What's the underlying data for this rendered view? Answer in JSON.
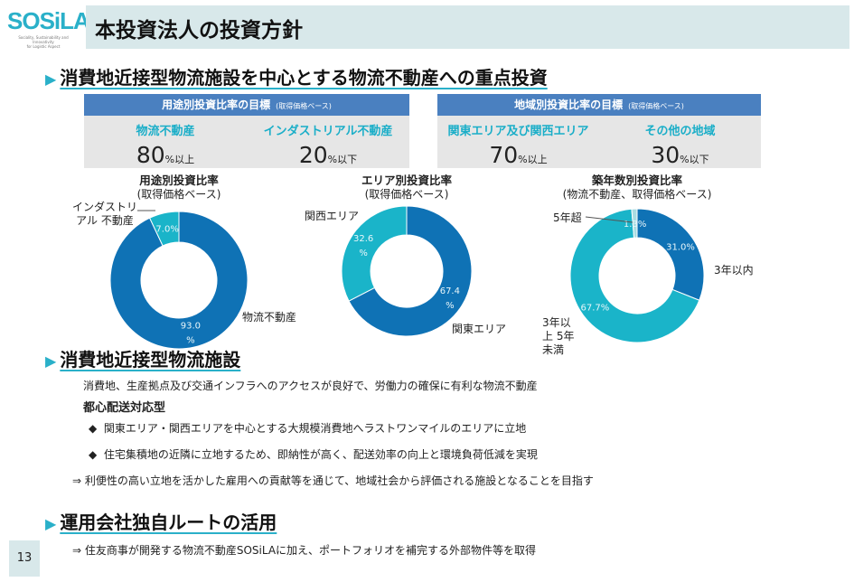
{
  "logo": {
    "text": "SOSiLA",
    "tagline": "Sociality, Sustainability and Innovativity for Logistic Aspect"
  },
  "header": {
    "title": "本投資法人の投資方針"
  },
  "section1": {
    "title": "消費地近接型物流施設を中心とする物流不動産への重点投資"
  },
  "targets": [
    {
      "title": "用途別投資比率の目標",
      "basis": "(取得価格ベース)",
      "items": [
        {
          "label": "物流不動産",
          "value": "80",
          "unit": "%以上"
        },
        {
          "label": "インダストリアル不動産",
          "value": "20",
          "unit": "%以下"
        }
      ]
    },
    {
      "title": "地域別投資比率の目標",
      "basis": "(取得価格ベース)",
      "items": [
        {
          "label": "関東エリア及び関西エリア",
          "value": "70",
          "unit": "%以上"
        },
        {
          "label": "その他の地域",
          "value": "30",
          "unit": "%以下"
        }
      ]
    }
  ],
  "colors": {
    "dark_blue": "#0f72b5",
    "cyan": "#1ab4c9",
    "pale": "#a9dce2",
    "accent": "#2ab0c9"
  },
  "chart_data": [
    {
      "type": "pie",
      "title": "用途別投資比率",
      "subtitle": "(取得価格ベース)",
      "donut": true,
      "slices": [
        {
          "name": "物流不動産",
          "value": 93.0,
          "label": "93.0 %",
          "color": "#0f72b5"
        },
        {
          "name": "インダストリアル 不動産",
          "value": 7.0,
          "label": "7.0%",
          "color": "#1ab4c9"
        }
      ]
    },
    {
      "type": "pie",
      "title": "エリア別投資比率",
      "subtitle": "(取得価格ベース)",
      "donut": true,
      "slices": [
        {
          "name": "関東エリア",
          "value": 67.4,
          "label": "67.4 %",
          "color": "#0f72b5"
        },
        {
          "name": "関西エリア",
          "value": 32.6,
          "label": "32.6 %",
          "color": "#1ab4c9"
        }
      ]
    },
    {
      "type": "pie",
      "title": "築年数別投資比率",
      "subtitle": "(物流不動産、取得価格ベース)",
      "donut": true,
      "slices": [
        {
          "name": "3年以内",
          "value": 31.0,
          "label": "31.0%",
          "color": "#0f72b5"
        },
        {
          "name": "3年以上 5年未満",
          "value": 67.7,
          "label": "67.7%",
          "color": "#1ab4c9"
        },
        {
          "name": "5年超",
          "value": 1.3,
          "label": "1.3%",
          "color": "#a9dce2"
        }
      ]
    }
  ],
  "section2": {
    "title": "消費地近接型物流施設",
    "desc": "消費地、生産拠点及び交通インフラへのアクセスが良好で、労働力の確保に有利な物流不動産",
    "subtitle": "都心配送対応型",
    "bullets": [
      "関東エリア・関西エリアを中心とする大規模消費地へラストワンマイルのエリアに立地",
      "住宅集積地の近隣に立地するため、即納性が高く、配送効率の向上と環境負荷低減を実現"
    ],
    "conclusion": "⇒ 利便性の高い立地を活かした雇用への貢献等を通じて、地域社会から評価される施設となることを目指す"
  },
  "section3": {
    "title": "運用会社独自ルートの活用",
    "text": "⇒ 住友商事が開発する物流不動産SOSiLAに加え、ポートフォリオを補完する外部物件等を取得"
  },
  "page_number": "13"
}
